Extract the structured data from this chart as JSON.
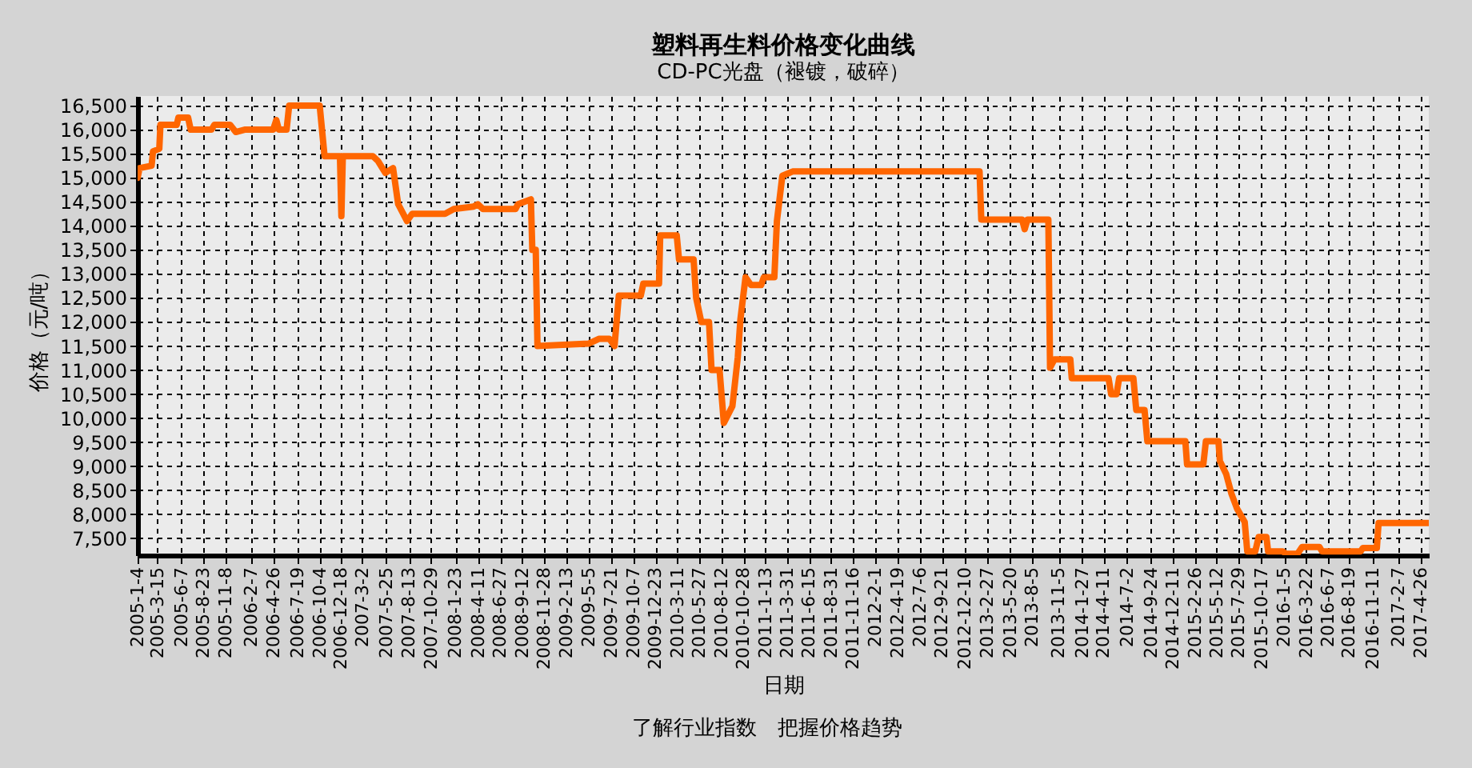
{
  "chart_data": {
    "type": "line",
    "title": "塑料再生料价格变化曲线",
    "subtitle": "CD-PC光盘（褪镀，破碎）",
    "xlabel": "日期",
    "ylabel": "价格（元/吨）",
    "annotations": [
      "了解行业指数　把握价格趋势"
    ],
    "grid": true,
    "marker": "none",
    "line_style": "solid",
    "xlim": [
      "2005-01-04",
      "2017-05-25"
    ],
    "ylim": [
      7150,
      16700
    ],
    "xticks": [
      {
        "value": "2005-01-04",
        "label": "2005-1-4"
      },
      {
        "value": "2005-03-15",
        "label": "2005-3-15"
      },
      {
        "value": "2005-06-07",
        "label": "2005-6-7"
      },
      {
        "value": "2005-08-23",
        "label": "2005-8-23"
      },
      {
        "value": "2005-11-08",
        "label": "2005-11-8"
      },
      {
        "value": "2006-02-07",
        "label": "2006-2-7"
      },
      {
        "value": "2006-04-26",
        "label": "2006-4-26"
      },
      {
        "value": "2006-07-19",
        "label": "2006-7-19"
      },
      {
        "value": "2006-10-04",
        "label": "2006-10-4"
      },
      {
        "value": "2006-12-18",
        "label": "2006-12-18"
      },
      {
        "value": "2007-03-02",
        "label": "2007-3-2"
      },
      {
        "value": "2007-05-25",
        "label": "2007-5-25"
      },
      {
        "value": "2007-08-13",
        "label": "2007-8-13"
      },
      {
        "value": "2007-10-29",
        "label": "2007-10-29"
      },
      {
        "value": "2008-01-23",
        "label": "2008-1-23"
      },
      {
        "value": "2008-04-11",
        "label": "2008-4-11"
      },
      {
        "value": "2008-06-27",
        "label": "2008-6-27"
      },
      {
        "value": "2008-09-12",
        "label": "2008-9-12"
      },
      {
        "value": "2008-11-28",
        "label": "2008-11-28"
      },
      {
        "value": "2009-02-13",
        "label": "2009-2-13"
      },
      {
        "value": "2009-05-05",
        "label": "2009-5-5"
      },
      {
        "value": "2009-07-21",
        "label": "2009-7-21"
      },
      {
        "value": "2009-10-07",
        "label": "2009-10-7"
      },
      {
        "value": "2009-12-23",
        "label": "2009-12-23"
      },
      {
        "value": "2010-03-11",
        "label": "2010-3-11"
      },
      {
        "value": "2010-05-27",
        "label": "2010-5-27"
      },
      {
        "value": "2010-08-12",
        "label": "2010-8-12"
      },
      {
        "value": "2010-10-28",
        "label": "2010-10-28"
      },
      {
        "value": "2011-01-13",
        "label": "2011-1-13"
      },
      {
        "value": "2011-03-31",
        "label": "2011-3-31"
      },
      {
        "value": "2011-06-15",
        "label": "2011-6-15"
      },
      {
        "value": "2011-08-31",
        "label": "2011-8-31"
      },
      {
        "value": "2011-11-16",
        "label": "2011-11-16"
      },
      {
        "value": "2012-02-01",
        "label": "2012-2-1"
      },
      {
        "value": "2012-04-19",
        "label": "2012-4-19"
      },
      {
        "value": "2012-07-06",
        "label": "2012-7-6"
      },
      {
        "value": "2012-09-21",
        "label": "2012-9-21"
      },
      {
        "value": "2012-12-10",
        "label": "2012-12-10"
      },
      {
        "value": "2013-02-27",
        "label": "2013-2-27"
      },
      {
        "value": "2013-05-20",
        "label": "2013-5-20"
      },
      {
        "value": "2013-08-05",
        "label": "2013-8-5"
      },
      {
        "value": "2013-11-05",
        "label": "2013-11-5"
      },
      {
        "value": "2014-01-27",
        "label": "2014-1-27"
      },
      {
        "value": "2014-04-11",
        "label": "2014-4-11"
      },
      {
        "value": "2014-07-02",
        "label": "2014-7-2"
      },
      {
        "value": "2014-09-24",
        "label": "2014-9-24"
      },
      {
        "value": "2014-12-11",
        "label": "2014-12-11"
      },
      {
        "value": "2015-02-26",
        "label": "2015-2-26"
      },
      {
        "value": "2015-05-12",
        "label": "2015-5-12"
      },
      {
        "value": "2015-07-29",
        "label": "2015-7-29"
      },
      {
        "value": "2015-10-17",
        "label": "2015-10-17"
      },
      {
        "value": "2016-01-05",
        "label": "2016-1-5"
      },
      {
        "value": "2016-03-22",
        "label": "2016-3-22"
      },
      {
        "value": "2016-06-07",
        "label": "2016-6-7"
      },
      {
        "value": "2016-08-19",
        "label": "2016-8-19"
      },
      {
        "value": "2016-11-11",
        "label": "2016-11-11"
      },
      {
        "value": "2017-02-07",
        "label": "2017-2-7"
      },
      {
        "value": "2017-04-26",
        "label": "2017-4-26"
      }
    ],
    "yticks": [
      {
        "value": 7500,
        "label": "7,500"
      },
      {
        "value": 8000,
        "label": "8,000"
      },
      {
        "value": 8500,
        "label": "8,500"
      },
      {
        "value": 9000,
        "label": "9,000"
      },
      {
        "value": 9500,
        "label": "9,500"
      },
      {
        "value": 10000,
        "label": "10,000"
      },
      {
        "value": 10500,
        "label": "10,500"
      },
      {
        "value": 11000,
        "label": "11,000"
      },
      {
        "value": 11500,
        "label": "11,500"
      },
      {
        "value": 12000,
        "label": "12,000"
      },
      {
        "value": 12500,
        "label": "12,500"
      },
      {
        "value": 13000,
        "label": "13,000"
      },
      {
        "value": 13500,
        "label": "13,500"
      },
      {
        "value": 14000,
        "label": "14,000"
      },
      {
        "value": 14500,
        "label": "14,500"
      },
      {
        "value": 15000,
        "label": "15,000"
      },
      {
        "value": 15500,
        "label": "15,500"
      },
      {
        "value": 16000,
        "label": "16,000"
      },
      {
        "value": 16500,
        "label": "16,500"
      }
    ],
    "series": [
      {
        "color": "#ff6600",
        "x": [
          "2005-01-04",
          "2005-01-11",
          "2005-02-22",
          "2005-02-27",
          "2005-03-21",
          "2005-03-25",
          "2005-05-21",
          "2005-05-27",
          "2005-06-30",
          "2005-07-09",
          "2005-09-20",
          "2005-09-30",
          "2005-11-24",
          "2005-12-14",
          "2006-01-14",
          "2006-04-24",
          "2006-05-05",
          "2006-05-14",
          "2006-06-10",
          "2006-06-19",
          "2006-10-04",
          "2006-10-21",
          "2006-12-14",
          "2006-12-19",
          "2006-12-24",
          "2007-04-08",
          "2007-04-26",
          "2007-05-22",
          "2007-06-18",
          "2007-07-06",
          "2007-08-06",
          "2007-08-24",
          "2007-12-17",
          "2008-01-17",
          "2008-03-26",
          "2008-04-10",
          "2008-04-28",
          "2008-08-20",
          "2008-08-29",
          "2008-10-13",
          "2008-10-18",
          "2008-10-30",
          "2008-11-05",
          "2009-05-03",
          "2009-06-08",
          "2009-07-15",
          "2009-08-02",
          "2009-08-17",
          "2009-11-02",
          "2009-11-11",
          "2010-01-05",
          "2010-01-09",
          "2010-03-08",
          "2010-03-16",
          "2010-05-06",
          "2010-05-15",
          "2010-06-02",
          "2010-06-29",
          "2010-07-08",
          "2010-08-05",
          "2010-08-20",
          "2010-09-19",
          "2010-10-08",
          "2010-10-17",
          "2010-11-04",
          "2010-11-23",
          "2010-12-29",
          "2011-01-07",
          "2011-02-13",
          "2011-02-22",
          "2011-03-13",
          "2011-04-18",
          "2013-02-01",
          "2013-02-07",
          "2013-06-30",
          "2013-07-09",
          "2013-07-19",
          "2013-09-30",
          "2013-10-06",
          "2013-10-21",
          "2013-12-16",
          "2013-12-21",
          "2014-04-29",
          "2014-05-08",
          "2014-05-27",
          "2014-06-05",
          "2014-07-25",
          "2014-08-04",
          "2014-09-02",
          "2014-09-12",
          "2015-01-23",
          "2015-01-29",
          "2015-03-27",
          "2015-04-05",
          "2015-05-19",
          "2015-05-24",
          "2015-06-15",
          "2015-07-04",
          "2015-07-23",
          "2015-08-19",
          "2015-08-28",
          "2015-09-25",
          "2015-10-07",
          "2015-11-03",
          "2015-11-09",
          "2015-12-30",
          "2016-01-10",
          "2016-02-20",
          "2016-03-07",
          "2016-05-07",
          "2016-05-16",
          "2016-09-28",
          "2016-10-06",
          "2016-11-24",
          "2016-11-30",
          "2017-05-22"
        ],
        "values": [
          15000,
          15200,
          15250,
          15550,
          15600,
          16100,
          16100,
          16250,
          16250,
          16000,
          16000,
          16100,
          16100,
          15950,
          16000,
          16000,
          16200,
          16000,
          16000,
          16500,
          16500,
          15450,
          15450,
          14200,
          15450,
          15450,
          15350,
          15100,
          15200,
          14450,
          14100,
          14250,
          14250,
          14350,
          14400,
          14450,
          14350,
          14350,
          14450,
          14550,
          13500,
          13500,
          11500,
          11550,
          11650,
          11650,
          11500,
          12550,
          12550,
          12800,
          12800,
          13800,
          13800,
          13300,
          13300,
          12500,
          12000,
          12000,
          11000,
          11000,
          9900,
          10250,
          11270,
          12050,
          12930,
          12770,
          12770,
          12930,
          12930,
          14100,
          15040,
          15130,
          15130,
          14130,
          14130,
          13930,
          14130,
          14130,
          11050,
          11220,
          11220,
          10830,
          10830,
          10500,
          10500,
          10830,
          10830,
          10170,
          10170,
          9520,
          9520,
          9040,
          9040,
          9520,
          9520,
          9110,
          8840,
          8420,
          8120,
          7840,
          7230,
          7230,
          7530,
          7530,
          7230,
          7230,
          7180,
          7180,
          7320,
          7320,
          7230,
          7230,
          7300,
          7300,
          7820,
          7820
        ]
      }
    ]
  }
}
